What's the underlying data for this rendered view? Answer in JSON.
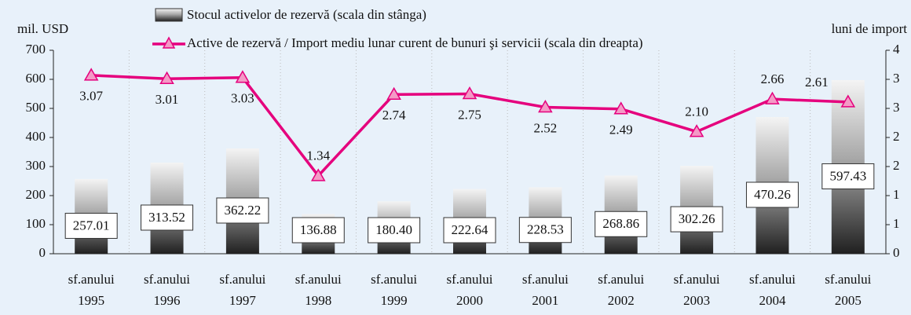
{
  "chart_data": {
    "type": "bar-line",
    "y_label": "mil. USD",
    "y2_label": "luni de import",
    "categories": [
      [
        "sf.anului",
        "1995"
      ],
      [
        "sf.anului",
        "1996"
      ],
      [
        "sf.anului",
        "1997"
      ],
      [
        "sf.anului",
        "1998"
      ],
      [
        "sf.anului",
        "1999"
      ],
      [
        "sf.anului",
        "2000"
      ],
      [
        "sf.anului",
        "2001"
      ],
      [
        "sf.anului",
        "2002"
      ],
      [
        "sf.anului",
        "2003"
      ],
      [
        "sf.anului",
        "2004"
      ],
      [
        "sf.anului",
        "2005"
      ]
    ],
    "series": [
      {
        "name": "Stocul activelor de rezervă (scala din stânga)",
        "type": "bar",
        "color": "#333333",
        "values": [
          257.01,
          313.52,
          362.22,
          136.88,
          180.4,
          222.64,
          228.53,
          268.86,
          302.26,
          470.26,
          597.43
        ],
        "value_labels": [
          "257.01",
          "313.52",
          "362.22",
          "136.88",
          "180.40",
          "222.64",
          "228.53",
          "268.86",
          "302.26",
          "470.26",
          "597.43"
        ]
      },
      {
        "name": "Active de rezervă / Import mediu lunar curent de bunuri şi servicii (scala din dreapta)",
        "type": "line",
        "axis": "y2",
        "color": "#e5007d",
        "values": [
          3.07,
          3.01,
          3.03,
          1.34,
          2.74,
          2.75,
          2.52,
          2.49,
          2.1,
          2.66,
          2.61
        ],
        "value_labels": [
          "3.07",
          "3.01",
          "3.03",
          "1.34",
          "2.74",
          "2.75",
          "2.52",
          "2.49",
          "2.10",
          "2.66",
          "2.61"
        ]
      }
    ],
    "ylim": [
      0,
      700
    ],
    "yticks": [
      0,
      100,
      200,
      300,
      400,
      500,
      600,
      700
    ],
    "y2lim": [
      0,
      3.5
    ],
    "y2ticks": [
      0,
      {
        "value": 0.5,
        "label": "1"
      },
      1,
      {
        "value": 1.5,
        "label": "2"
      },
      2,
      {
        "value": 2.5,
        "label": "3"
      },
      3,
      {
        "value": 3.5,
        "label": "4"
      }
    ]
  }
}
